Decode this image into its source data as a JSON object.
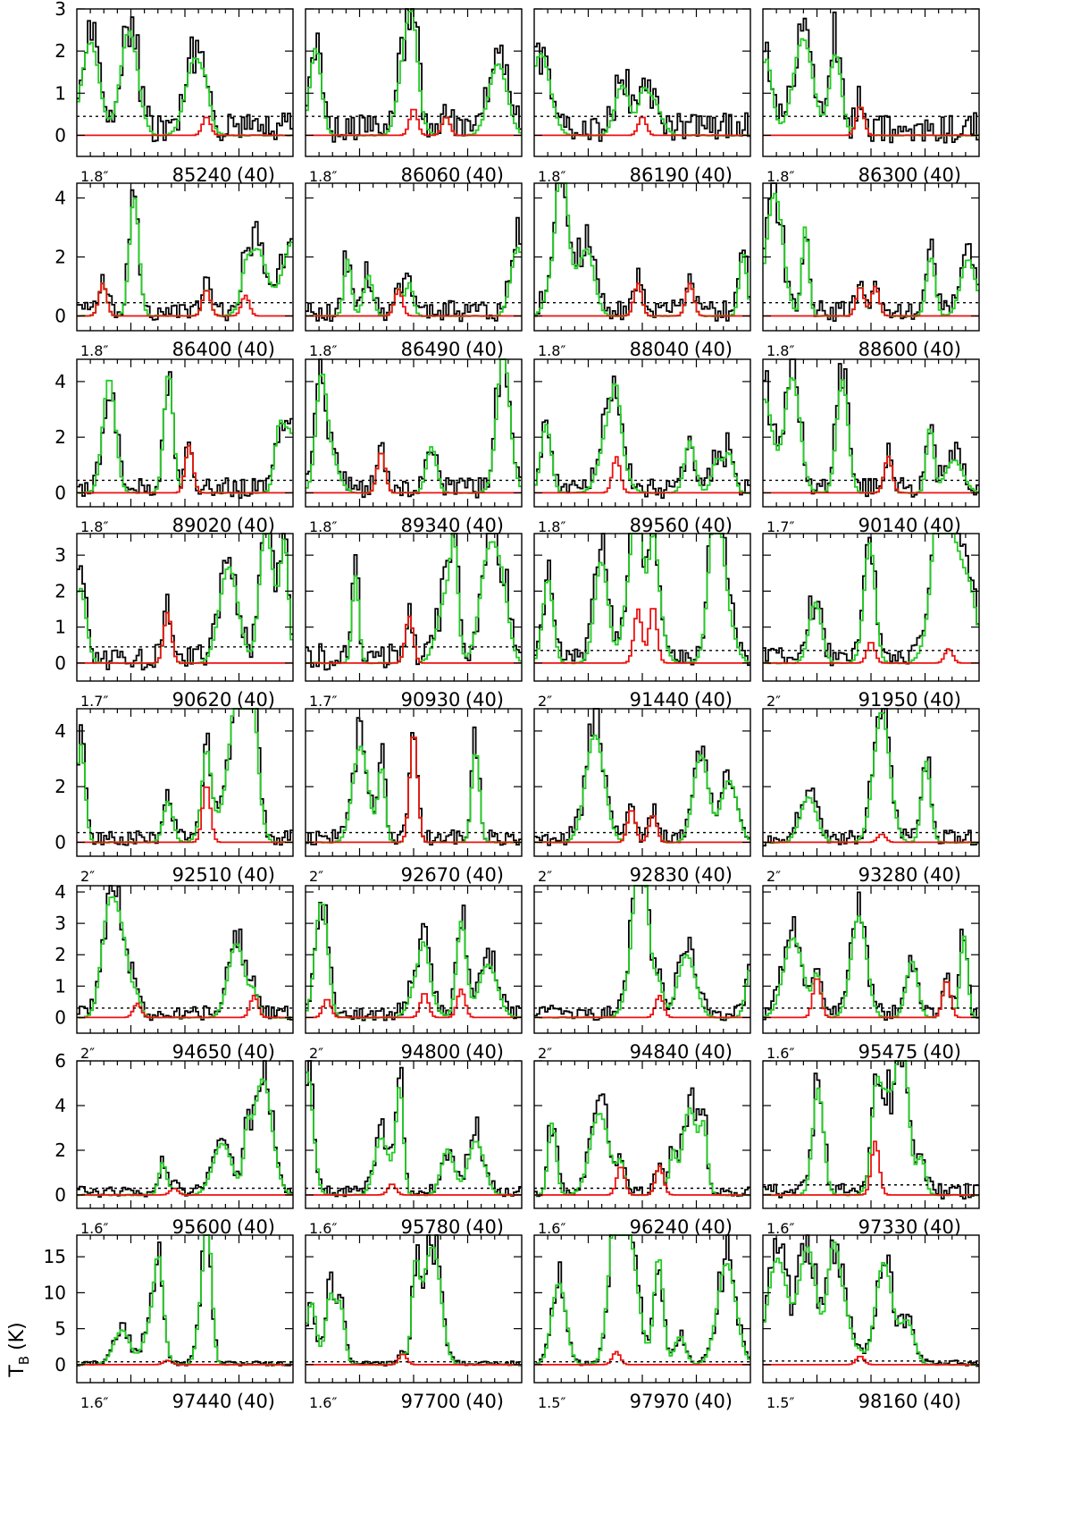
{
  "chart_data": {
    "type": "line",
    "ylabel": "T",
    "ylabel_sub": "B",
    "ylabel_unit": "(K)",
    "colors": {
      "observed": "#000000",
      "model_all": "#22cc22",
      "model_species": "#ee1111",
      "threshold": "#000000"
    },
    "rows": [
      {
        "ylim": [
          -0.5,
          3
        ],
        "yticks": [
          0,
          1,
          2,
          3
        ]
      },
      {
        "ylim": [
          -0.5,
          4.5
        ],
        "yticks": [
          0,
          2,
          4
        ]
      },
      {
        "ylim": [
          -0.5,
          4.8
        ],
        "yticks": [
          0,
          2,
          4
        ]
      },
      {
        "ylim": [
          -0.5,
          3.6
        ],
        "yticks": [
          0,
          1,
          2,
          3
        ]
      },
      {
        "ylim": [
          -0.5,
          4.8
        ],
        "yticks": [
          0,
          2,
          4
        ]
      },
      {
        "ylim": [
          -0.5,
          4.2
        ],
        "yticks": [
          0,
          1,
          2,
          3,
          4
        ]
      },
      {
        "ylim": [
          -0.6,
          6
        ],
        "yticks": [
          0,
          2,
          4,
          6
        ]
      },
      {
        "ylim": [
          -2.5,
          18
        ],
        "yticks": [
          0,
          5,
          10,
          15
        ]
      }
    ],
    "panels": [
      {
        "freq": "85240",
        "res": "1.8″",
        "width": "(40)",
        "noise": 0.45,
        "peaks": [
          [
            0.6,
            0.45
          ]
        ]
      },
      {
        "freq": "86060",
        "res": "1.8″",
        "width": "(40)",
        "noise": 0.45,
        "peaks": [
          [
            0.5,
            0.65
          ],
          [
            0.65,
            0.45
          ]
        ]
      },
      {
        "freq": "86190",
        "res": "1.8″",
        "width": "(40)",
        "noise": 0.45,
        "peaks": [
          [
            0.5,
            0.45
          ]
        ]
      },
      {
        "freq": "86300",
        "res": "1.8″",
        "width": "(40)",
        "noise": 0.45,
        "peaks": [
          [
            0.45,
            0.7
          ]
        ]
      },
      {
        "freq": "86400",
        "res": "1.8″",
        "width": "(40)",
        "noise": 0.45,
        "peaks": [
          [
            0.12,
            1.1
          ],
          [
            0.6,
            0.9
          ],
          [
            0.78,
            0.7
          ]
        ]
      },
      {
        "freq": "86490",
        "res": "1.8″",
        "width": "(40)",
        "noise": 0.45,
        "peaks": [
          [
            0.43,
            0.9
          ]
        ]
      },
      {
        "freq": "88040",
        "res": "1.8″",
        "width": "(40)",
        "noise": 0.45,
        "peaks": [
          [
            0.48,
            1.1
          ],
          [
            0.72,
            1.1
          ]
        ]
      },
      {
        "freq": "88600",
        "res": "1.8″",
        "width": "(40)",
        "noise": 0.45,
        "peaks": [
          [
            0.45,
            1.0
          ],
          [
            0.52,
            1.0
          ]
        ]
      },
      {
        "freq": "89020",
        "res": "1.8″",
        "width": "(40)",
        "noise": 0.45,
        "peaks": [
          [
            0.52,
            1.7
          ]
        ]
      },
      {
        "freq": "89340",
        "res": "1.8″",
        "width": "(40)",
        "noise": 0.45,
        "peaks": [
          [
            0.35,
            1.5
          ]
        ]
      },
      {
        "freq": "89560",
        "res": "1.8″",
        "width": "(40)",
        "noise": 0.45,
        "peaks": [
          [
            0.38,
            1.3
          ]
        ]
      },
      {
        "freq": "90140",
        "res": "1.7″",
        "width": "(40)",
        "noise": 0.45,
        "peaks": [
          [
            0.58,
            1.3
          ]
        ]
      },
      {
        "freq": "90620",
        "res": "1.7″",
        "width": "(40)",
        "noise": 0.45,
        "peaks": [
          [
            0.42,
            1.4
          ]
        ]
      },
      {
        "freq": "90930",
        "res": "1.7″",
        "width": "(40)",
        "noise": 0.45,
        "peaks": [
          [
            0.48,
            1.3
          ]
        ]
      },
      {
        "freq": "91440",
        "res": "2″",
        "width": "(40)",
        "noise": 0.35,
        "peaks": [
          [
            0.48,
            1.5
          ],
          [
            0.55,
            1.6
          ]
        ]
      },
      {
        "freq": "91950",
        "res": "2″",
        "width": "(40)",
        "noise": 0.35,
        "peaks": [
          [
            0.5,
            0.6
          ],
          [
            0.86,
            0.4
          ]
        ]
      },
      {
        "freq": "92510",
        "res": "2″",
        "width": "(40)",
        "noise": 0.35,
        "peaks": [
          [
            0.6,
            2.1
          ]
        ]
      },
      {
        "freq": "92670",
        "res": "2″",
        "width": "(40)",
        "noise": 0.35,
        "peaks": [
          [
            0.5,
            4.0
          ]
        ]
      },
      {
        "freq": "92830",
        "res": "2″",
        "width": "(40)",
        "noise": 0.35,
        "peaks": [
          [
            0.45,
            1.2
          ],
          [
            0.55,
            1.0
          ]
        ]
      },
      {
        "freq": "93280",
        "res": "2″",
        "width": "(40)",
        "noise": 0.35,
        "peaks": [
          [
            0.55,
            0.3
          ]
        ]
      },
      {
        "freq": "94650",
        "res": "2″",
        "width": "(40)",
        "noise": 0.3,
        "peaks": [
          [
            0.28,
            0.45
          ],
          [
            0.82,
            0.7
          ]
        ]
      },
      {
        "freq": "94800",
        "res": "2″",
        "width": "(40)",
        "noise": 0.3,
        "peaks": [
          [
            0.1,
            0.6
          ],
          [
            0.55,
            0.8
          ],
          [
            0.72,
            0.9
          ]
        ]
      },
      {
        "freq": "94840",
        "res": "2″",
        "width": "(40)",
        "noise": 0.3,
        "peaks": [
          [
            0.58,
            0.7
          ]
        ]
      },
      {
        "freq": "95475",
        "res": "1.6″",
        "width": "(40)",
        "noise": 0.3,
        "peaks": [
          [
            0.25,
            1.3
          ],
          [
            0.85,
            1.2
          ]
        ]
      },
      {
        "freq": "95600",
        "res": "1.6″",
        "width": "(40)",
        "noise": 0.3,
        "peaks": [
          [
            0.45,
            0.3
          ]
        ]
      },
      {
        "freq": "95780",
        "res": "1.6″",
        "width": "(40)",
        "noise": 0.3,
        "peaks": [
          [
            0.4,
            0.5
          ]
        ]
      },
      {
        "freq": "96240",
        "res": "1.6″",
        "width": "(40)",
        "noise": 0.3,
        "peaks": [
          [
            0.4,
            1.3
          ],
          [
            0.58,
            1.3
          ]
        ]
      },
      {
        "freq": "97330",
        "res": "1.6″",
        "width": "(40)",
        "noise": 0.45,
        "peaks": [
          [
            0.52,
            2.4
          ]
        ]
      },
      {
        "freq": "97440",
        "res": "1.6″",
        "width": "(40)",
        "noise": 0.4,
        "peaks": [
          [
            0.42,
            0.6
          ]
        ]
      },
      {
        "freq": "97700",
        "res": "1.6″",
        "width": "(40)",
        "noise": 0.4,
        "peaks": [
          [
            0.45,
            1.5
          ]
        ]
      },
      {
        "freq": "97970",
        "res": "1.5″",
        "width": "(40)",
        "noise": 0.4,
        "peaks": [
          [
            0.38,
            1.8
          ]
        ]
      },
      {
        "freq": "98160",
        "res": "1.5″",
        "width": "(40)",
        "noise": 0.5,
        "peaks": [
          [
            0.45,
            1.2
          ]
        ]
      }
    ]
  }
}
